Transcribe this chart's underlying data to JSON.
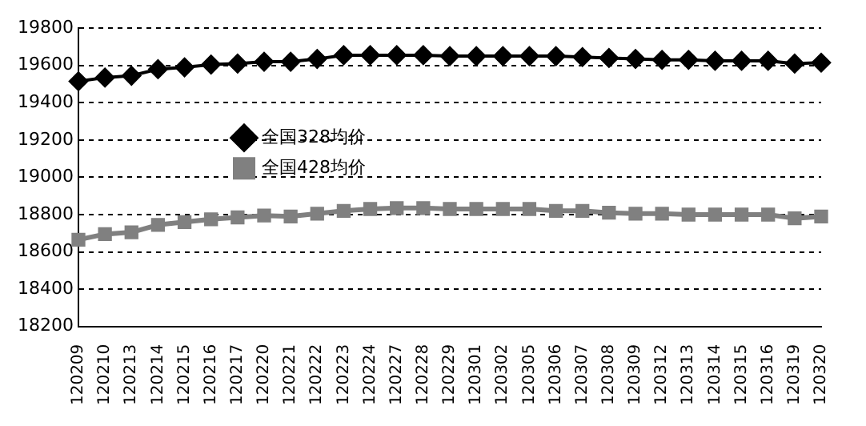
{
  "chart_data": {
    "type": "line",
    "categories": [
      "120209",
      "120210",
      "120213",
      "120214",
      "120215",
      "120216",
      "120217",
      "120220",
      "120221",
      "120222",
      "120223",
      "120224",
      "120227",
      "120228",
      "120229",
      "120301",
      "120302",
      "120305",
      "120306",
      "120307",
      "120308",
      "120309",
      "120312",
      "120313",
      "120314",
      "120315",
      "120316",
      "120319",
      "120320"
    ],
    "series": [
      {
        "name": "全国328均价",
        "color": "#000000",
        "marker": "diamond",
        "values": [
          19515,
          19535,
          19545,
          19580,
          19590,
          19605,
          19610,
          19620,
          19620,
          19635,
          19655,
          19655,
          19655,
          19655,
          19650,
          19650,
          19650,
          19650,
          19650,
          19645,
          19640,
          19635,
          19630,
          19630,
          19625,
          19625,
          19625,
          19610,
          19615
        ]
      },
      {
        "name": "全国428均价",
        "color": "#808080",
        "marker": "square",
        "values": [
          18665,
          18695,
          18705,
          18745,
          18760,
          18775,
          18785,
          18795,
          18790,
          18805,
          18820,
          18830,
          18835,
          18835,
          18830,
          18830,
          18830,
          18830,
          18820,
          18820,
          18810,
          18805,
          18805,
          18800,
          18800,
          18800,
          18800,
          18780,
          18790
        ]
      }
    ],
    "ylim": [
      18200,
      19800
    ],
    "yticks": [
      18200,
      18400,
      18600,
      18800,
      19000,
      19200,
      19400,
      19600,
      19800
    ],
    "grid": "y",
    "legend": "left"
  }
}
